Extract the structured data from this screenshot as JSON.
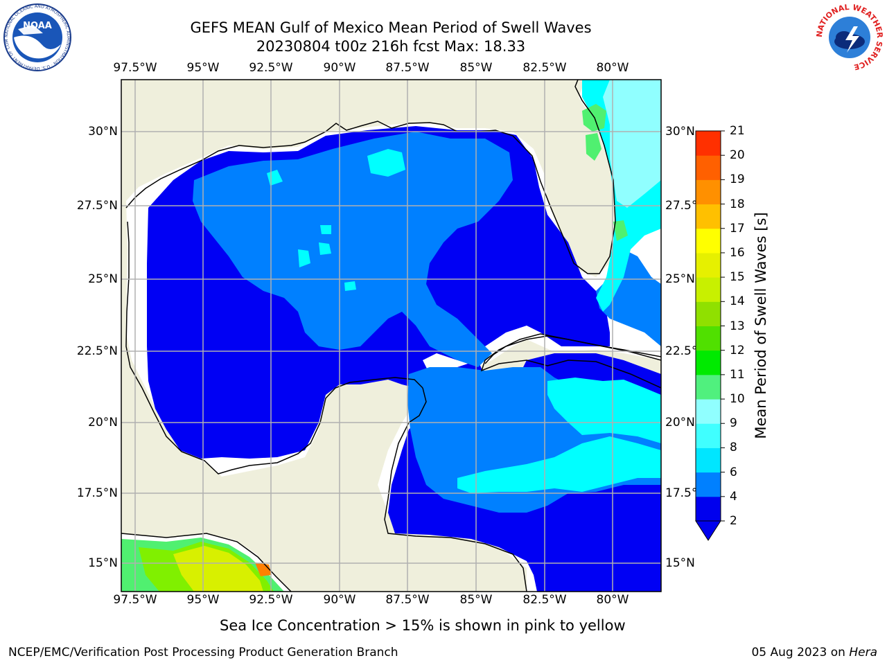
{
  "header": {
    "title_line1": "GEFS MEAN Gulf of Mexico Mean Period of Swell Waves",
    "title_line2": "20230804 t00z 216h fcst   Max: 18.33"
  },
  "logos": {
    "noaa_text": "NOAA",
    "noaa_ring_text": "NATIONAL OCEANIC AND ATMOSPHERIC ADMINISTRATION · U.S. DEPARTMENT OF COMMERCE",
    "nws_ring_text": "NATIONAL WEATHER SERVICE"
  },
  "map": {
    "lon_labels": [
      "97.5°W",
      "95°W",
      "92.5°W",
      "90°W",
      "87.5°W",
      "85°W",
      "82.5°W",
      "80°W"
    ],
    "lat_labels": [
      "30°N",
      "27.5°N",
      "25°N",
      "22.5°N",
      "20°N",
      "17.5°N",
      "15°N"
    ],
    "colors": {
      "land": "#efefdc",
      "nodata": "#ffffff",
      "level_2_4": "#0000f4",
      "level_4_6": "#0080ff",
      "level_6_8": "#00ffff",
      "level_8_9": "#40ffe8",
      "level_9_10": "#90ffff",
      "level_10_11": "#50f070",
      "level_11_13": "#80f000",
      "level_13_16": "#d8f000",
      "level_high": "#ff8000",
      "grid": "#b0b0b0"
    }
  },
  "colorbar": {
    "title": "Mean Period of Swell Waves [s]",
    "tick_labels": [
      "2",
      "4",
      "6",
      "8",
      "9",
      "10",
      "11",
      "12",
      "13",
      "14",
      "15",
      "16",
      "17",
      "18",
      "19",
      "20",
      "21"
    ],
    "colors": [
      "#0000ee",
      "#0080ff",
      "#00e6ff",
      "#40ffff",
      "#90ffff",
      "#50f07e",
      "#00ea00",
      "#50e000",
      "#90e000",
      "#c8f000",
      "#e6f000",
      "#ffff00",
      "#ffc000",
      "#ff9000",
      "#ff6000",
      "#ff3000",
      "#ff0000"
    ]
  },
  "subtitle": "Sea Ice Concentration > 15% is shown in pink to yellow",
  "footer": {
    "left": "NCEP/EMC/Verification Post Processing Product Generation Branch",
    "right_date": "05 Aug 2023 on ",
    "right_host": "Hera"
  }
}
